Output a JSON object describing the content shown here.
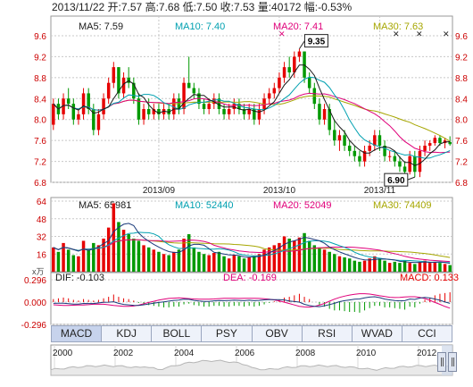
{
  "header": {
    "date": "2013/11/22",
    "open_label": "开:",
    "open": "7.57",
    "high_label": "高:",
    "high": "7.68",
    "low_label": "低:",
    "low": "7.50",
    "close_label": "收:",
    "close": "7.53",
    "volume_label": "量:",
    "volume": "40172",
    "change_label": "幅:",
    "change": "-0.53%"
  },
  "colors": {
    "up": "#e60000",
    "down": "#009900",
    "ma5": "#1a1a1a",
    "ma10": "#00a0b0",
    "ma20": "#e0007a",
    "ma30": "#a6a600",
    "grid": "#c8c8c8",
    "axis_text": "#cc0000"
  },
  "chart_data": [
    {
      "type": "candlestick",
      "legend": [
        {
          "label": "MA5: 7.59",
          "key": "ma5"
        },
        {
          "label": "MA10: 7.40",
          "key": "ma10"
        },
        {
          "label": "MA20: 7.41",
          "key": "ma20"
        },
        {
          "label": "MA30: 7.63",
          "key": "ma30"
        }
      ],
      "ylim": [
        6.8,
        9.6
      ],
      "y_ticks": [
        "9.6",
        "9.2",
        "8.8",
        "8.4",
        "8.0",
        "7.6",
        "7.2",
        "6.8"
      ],
      "x_ticks": [
        {
          "label": "2013/09",
          "index": 21
        },
        {
          "label": "2013/10",
          "index": 45
        },
        {
          "label": "2013/11",
          "index": 65
        }
      ],
      "annotations": [
        {
          "label": "9.35",
          "index": 49,
          "value": 9.35
        },
        {
          "label": "6.90",
          "index": 72,
          "value": 6.9
        }
      ],
      "ohlc": [
        [
          7.9,
          8.4,
          7.8,
          8.3
        ],
        [
          8.3,
          8.4,
          8.0,
          8.1
        ],
        [
          8.1,
          8.5,
          8.0,
          8.4
        ],
        [
          8.4,
          8.6,
          8.2,
          8.3
        ],
        [
          8.3,
          8.4,
          7.9,
          8.0
        ],
        [
          8.0,
          8.2,
          7.9,
          8.1
        ],
        [
          8.1,
          8.6,
          8.0,
          8.5
        ],
        [
          8.5,
          8.6,
          8.1,
          8.2
        ],
        [
          8.2,
          8.3,
          7.7,
          7.8
        ],
        [
          7.8,
          8.2,
          7.7,
          8.1
        ],
        [
          8.1,
          8.5,
          8.0,
          8.4
        ],
        [
          8.4,
          8.8,
          8.3,
          8.7
        ],
        [
          8.7,
          9.1,
          8.6,
          9.0
        ],
        [
          9.0,
          9.0,
          8.4,
          8.5
        ],
        [
          8.5,
          8.9,
          8.4,
          8.8
        ],
        [
          8.8,
          9.0,
          8.6,
          8.7
        ],
        [
          8.7,
          8.8,
          8.3,
          8.4
        ],
        [
          8.4,
          8.5,
          7.9,
          8.0
        ],
        [
          8.0,
          8.3,
          7.9,
          8.2
        ],
        [
          8.2,
          8.4,
          8.0,
          8.1
        ],
        [
          8.1,
          8.3,
          8.0,
          8.2
        ],
        [
          8.2,
          8.3,
          8.0,
          8.1
        ],
        [
          8.1,
          8.3,
          8.0,
          8.2
        ],
        [
          8.2,
          8.3,
          8.0,
          8.1
        ],
        [
          8.1,
          8.5,
          8.0,
          8.4
        ],
        [
          8.4,
          8.5,
          8.1,
          8.2
        ],
        [
          8.2,
          8.8,
          8.1,
          8.7
        ],
        [
          8.7,
          9.2,
          8.6,
          8.6
        ],
        [
          8.6,
          8.7,
          8.4,
          8.5
        ],
        [
          8.5,
          8.6,
          8.2,
          8.3
        ],
        [
          8.3,
          8.4,
          8.1,
          8.2
        ],
        [
          8.2,
          8.4,
          8.1,
          8.3
        ],
        [
          8.3,
          8.5,
          8.2,
          8.4
        ],
        [
          8.4,
          8.5,
          8.1,
          8.2
        ],
        [
          8.2,
          8.3,
          8.0,
          8.1
        ],
        [
          8.1,
          8.3,
          8.0,
          8.2
        ],
        [
          8.2,
          8.4,
          8.1,
          8.3
        ],
        [
          8.3,
          8.4,
          8.1,
          8.2
        ],
        [
          8.2,
          8.3,
          8.0,
          8.1
        ],
        [
          8.1,
          8.3,
          8.0,
          8.2
        ],
        [
          8.2,
          8.3,
          7.9,
          8.0
        ],
        [
          8.0,
          8.3,
          7.9,
          8.2
        ],
        [
          8.2,
          8.5,
          8.1,
          8.4
        ],
        [
          8.4,
          8.6,
          8.3,
          8.5
        ],
        [
          8.5,
          8.7,
          8.4,
          8.6
        ],
        [
          8.6,
          8.9,
          8.5,
          8.8
        ],
        [
          8.8,
          9.1,
          8.7,
          9.0
        ],
        [
          9.0,
          9.2,
          8.8,
          8.9
        ],
        [
          8.9,
          9.3,
          8.8,
          9.2
        ],
        [
          9.2,
          9.35,
          9.1,
          9.3
        ],
        [
          9.3,
          9.3,
          8.7,
          8.8
        ],
        [
          8.8,
          8.9,
          8.5,
          8.6
        ],
        [
          8.6,
          8.7,
          8.2,
          8.3
        ],
        [
          8.3,
          8.4,
          7.9,
          8.0
        ],
        [
          8.0,
          8.3,
          7.9,
          8.2
        ],
        [
          8.2,
          8.3,
          7.7,
          7.8
        ],
        [
          7.8,
          8.0,
          7.5,
          7.6
        ],
        [
          7.6,
          7.8,
          7.4,
          7.7
        ],
        [
          7.7,
          7.8,
          7.4,
          7.5
        ],
        [
          7.5,
          7.6,
          7.3,
          7.4
        ],
        [
          7.4,
          7.5,
          7.2,
          7.3
        ],
        [
          7.3,
          7.4,
          7.1,
          7.2
        ],
        [
          7.2,
          7.5,
          7.1,
          7.4
        ],
        [
          7.4,
          7.6,
          7.3,
          7.5
        ],
        [
          7.5,
          7.8,
          7.4,
          7.7
        ],
        [
          7.7,
          7.8,
          7.4,
          7.5
        ],
        [
          7.5,
          7.6,
          7.2,
          7.3
        ],
        [
          7.3,
          7.4,
          7.2,
          7.3
        ],
        [
          7.3,
          7.4,
          7.1,
          7.2
        ],
        [
          7.2,
          7.3,
          7.0,
          7.1
        ],
        [
          7.1,
          7.2,
          6.9,
          7.0
        ],
        [
          7.0,
          7.4,
          6.95,
          7.3
        ],
        [
          7.3,
          7.4,
          6.9,
          7.0
        ],
        [
          7.0,
          7.5,
          6.9,
          7.4
        ],
        [
          7.4,
          7.6,
          7.3,
          7.5
        ],
        [
          7.5,
          7.6,
          7.4,
          7.55
        ],
        [
          7.55,
          7.7,
          7.5,
          7.65
        ],
        [
          7.65,
          7.7,
          7.5,
          7.55
        ],
        [
          7.55,
          7.65,
          7.45,
          7.6
        ],
        [
          7.57,
          7.68,
          7.5,
          7.53
        ]
      ]
    },
    {
      "type": "bar",
      "unit_label": "x万",
      "legend": [
        {
          "label": "MA5: 65981",
          "key": "ma5"
        },
        {
          "label": "MA10: 52440",
          "key": "ma10"
        },
        {
          "label": "MA20: 52049",
          "key": "ma20"
        },
        {
          "label": "MA30: 74409",
          "key": "ma30"
        }
      ],
      "ylim": [
        0,
        64
      ],
      "y_ticks": [
        "64",
        "48",
        "32",
        "16",
        "0"
      ],
      "values": [
        22,
        18,
        26,
        20,
        15,
        14,
        28,
        20,
        26,
        24,
        30,
        40,
        62,
        45,
        38,
        34,
        30,
        28,
        24,
        22,
        20,
        18,
        16,
        15,
        18,
        20,
        30,
        34,
        22,
        18,
        16,
        15,
        17,
        18,
        14,
        12,
        15,
        14,
        12,
        13,
        14,
        16,
        20,
        22,
        24,
        26,
        32,
        30,
        28,
        31,
        35,
        28,
        24,
        22,
        20,
        18,
        16,
        14,
        13,
        12,
        10,
        9,
        10,
        12,
        14,
        12,
        10,
        8,
        9,
        8,
        10,
        8,
        7,
        9,
        10,
        8,
        9,
        8,
        7,
        6
      ]
    },
    {
      "type": "bar",
      "legend": [
        {
          "label": "DIF: -0.103",
          "key": "ma5"
        },
        {
          "label": "DEA: -0.169",
          "key": "ma20"
        },
        {
          "label": "MACD: 0.133",
          "key": "up"
        }
      ],
      "ylim": [
        -0.296,
        0.296
      ],
      "y_ticks": [
        "0.296",
        "0.000",
        "-0.296"
      ],
      "values": [
        0.04,
        0.05,
        0.06,
        0.05,
        0.03,
        0.02,
        0.04,
        0.03,
        0.02,
        0.03,
        0.05,
        0.07,
        0.1,
        0.07,
        0.05,
        0.04,
        0.02,
        -0.01,
        -0.03,
        -0.04,
        -0.05,
        -0.06,
        -0.07,
        -0.07,
        -0.06,
        -0.06,
        -0.03,
        -0.02,
        -0.04,
        -0.05,
        -0.06,
        -0.06,
        -0.05,
        -0.05,
        -0.06,
        -0.06,
        -0.05,
        -0.05,
        -0.06,
        -0.05,
        -0.06,
        -0.05,
        -0.03,
        -0.01,
        0.01,
        0.03,
        0.06,
        0.07,
        0.09,
        0.11,
        0.07,
        0.04,
        0.0,
        -0.04,
        -0.06,
        -0.09,
        -0.11,
        -0.11,
        -0.12,
        -0.13,
        -0.13,
        -0.14,
        -0.11,
        -0.08,
        -0.05,
        -0.05,
        -0.07,
        -0.07,
        -0.08,
        -0.09,
        -0.1,
        -0.06,
        -0.07,
        -0.02,
        0.03,
        0.06,
        0.09,
        0.11,
        0.12,
        0.13
      ]
    }
  ],
  "tabs": [
    "MACD",
    "KDJ",
    "BOLL",
    "PSY",
    "OBV",
    "RSI",
    "WVAD",
    "CCI"
  ],
  "navigator": {
    "years": [
      "2000",
      "2002",
      "2004",
      "2006",
      "2008",
      "2010",
      "2012"
    ]
  }
}
